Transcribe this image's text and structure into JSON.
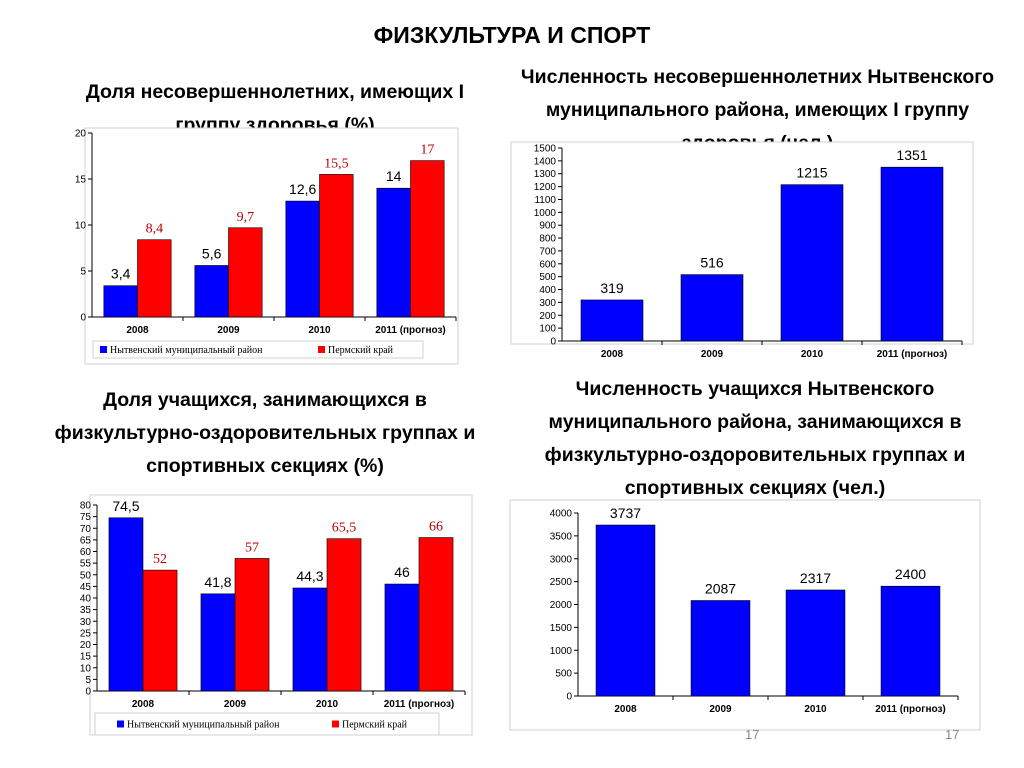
{
  "page": {
    "title": "ФИЗКУЛЬТУРА И СПОРТ",
    "page_number_1": "17",
    "page_number_2": "17"
  },
  "colors": {
    "blue": "#0000ff",
    "red": "#ff0000"
  },
  "chart_data": [
    {
      "type": "bar",
      "title": "Доля несовершеннолетних, имеющих I группу здоровья (%)",
      "categories": [
        "2008",
        "2009",
        "2010",
        "2011 (прогноз)"
      ],
      "series": [
        {
          "name": "Нытвенский муниципальный район",
          "color": "#0000ff",
          "values": [
            3.4,
            5.6,
            12.6,
            14
          ],
          "labels": [
            "3,4",
            "5,6",
            "12,6",
            "14"
          ]
        },
        {
          "name": "Пермский край",
          "color": "#ff0000",
          "values": [
            8.4,
            9.7,
            15.5,
            17
          ],
          "labels": [
            "8,4",
            "9,7",
            "15,5",
            "17"
          ]
        }
      ],
      "ylim": [
        0,
        20
      ],
      "yticks": [
        0,
        5,
        10,
        15,
        20
      ],
      "legend": "bottom"
    },
    {
      "type": "bar",
      "title": "Численность несовершеннолетних Нытвенского муниципального района, имеющих I группу здоровья (чел.)",
      "categories": [
        "2008",
        "2009",
        "2010",
        "2011 (прогноз)"
      ],
      "series": [
        {
          "color": "#0000ff",
          "values": [
            319,
            516,
            1215,
            1351
          ],
          "labels": [
            "319",
            "516",
            "1215",
            "1351"
          ]
        }
      ],
      "ylim": [
        0,
        1500
      ],
      "yticks": [
        0,
        100,
        200,
        300,
        400,
        500,
        600,
        700,
        800,
        900,
        1000,
        1100,
        1200,
        1300,
        1400,
        1500
      ]
    },
    {
      "type": "bar",
      "title": "Доля учащихся, занимающихся в физкультурно-оздоровительных группах и спортивных секциях (%)",
      "categories": [
        "2008",
        "2009",
        "2010",
        "2011 (прогноз)"
      ],
      "series": [
        {
          "name": "Нытвенский муниципальный район",
          "color": "#0000ff",
          "values": [
            74.5,
            41.8,
            44.3,
            46
          ],
          "labels": [
            "74,5",
            "41,8",
            "44,3",
            "46"
          ]
        },
        {
          "name": "Пермский край",
          "color": "#ff0000",
          "values": [
            52,
            57,
            65.5,
            66
          ],
          "labels": [
            "52",
            "57",
            "65,5",
            "66"
          ]
        }
      ],
      "ylim": [
        0,
        80
      ],
      "yticks": [
        0,
        5,
        10,
        15,
        20,
        25,
        30,
        35,
        40,
        45,
        50,
        55,
        60,
        65,
        70,
        75,
        80
      ],
      "legend": "bottom"
    },
    {
      "type": "bar",
      "title": "Численность учащихся Нытвенского муниципального района, занимающихся в физкультурно-оздоровительных группах и спортивных секциях (чел.)",
      "categories": [
        "2008",
        "2009",
        "2010",
        "2011 (прогноз)"
      ],
      "series": [
        {
          "color": "#0000ff",
          "values": [
            3737,
            2087,
            2317,
            2400
          ],
          "labels": [
            "3737",
            "2087",
            "2317",
            "2400"
          ]
        }
      ],
      "ylim": [
        0,
        4000
      ],
      "yticks": [
        0,
        500,
        1000,
        1500,
        2000,
        2500,
        3000,
        3500,
        4000
      ]
    }
  ]
}
